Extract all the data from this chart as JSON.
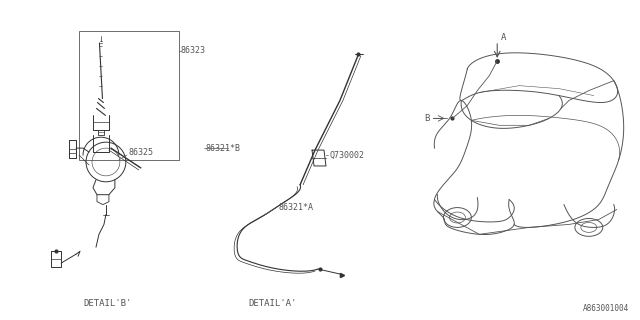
{
  "bg_color": "#ffffff",
  "line_color": "#555555",
  "dark_color": "#333333",
  "part_code": "A863001004",
  "font_size": 5.5,
  "detail_b_label": "DETAIL'B'",
  "detail_a_label": "DETAIL'A'"
}
